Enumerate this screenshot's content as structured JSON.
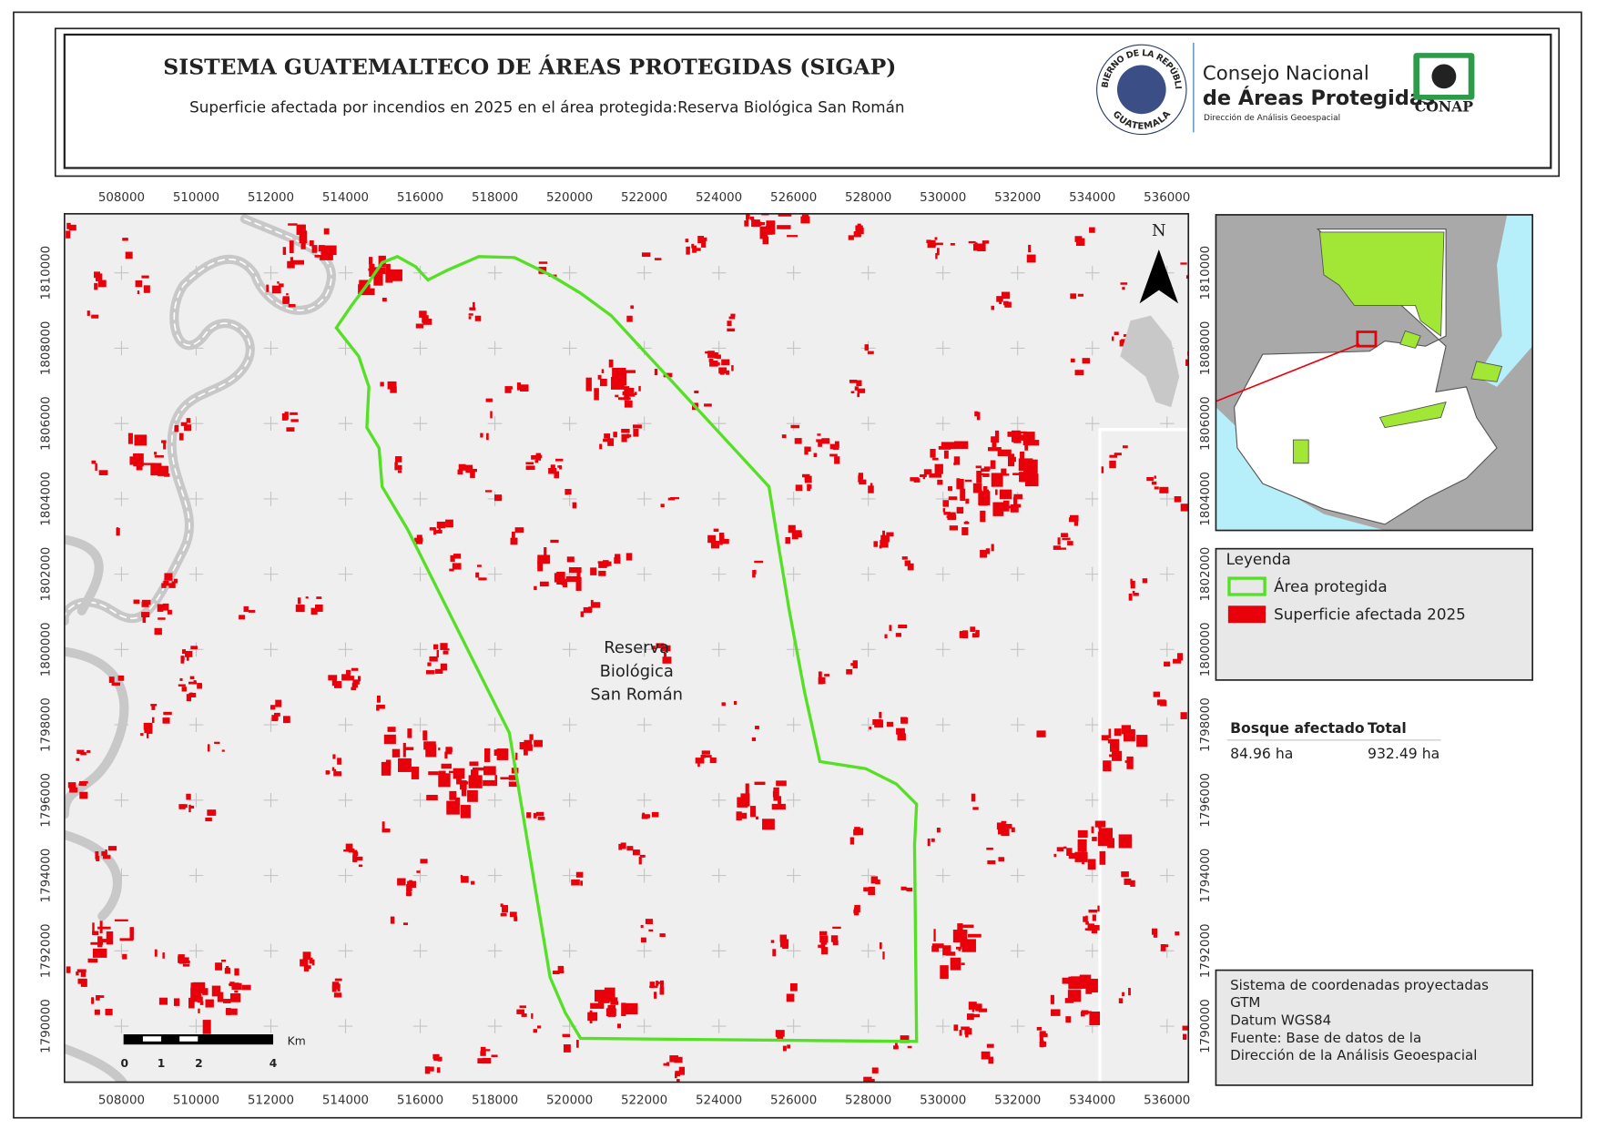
{
  "header": {
    "title": "SISTEMA GUATEMALTECO DE ÁREAS PROTEGIDAS  (SIGAP)",
    "subtitle": "Superficie afectada por incendios en 2025 en el área protegida:Reserva Biológica San Román"
  },
  "logos": {
    "seal_top": "GOBIERNO DE LA REPÚBLICA",
    "seal_bottom": "GUATEMALA",
    "org_line1": "Consejo Nacional",
    "org_line2": "de Áreas Protegidas",
    "org_line3": "Dirección de Análisis Geoespacial",
    "conap": "CONAP"
  },
  "map": {
    "x_ticks": [
      508000,
      510000,
      512000,
      514000,
      516000,
      518000,
      520000,
      522000,
      524000,
      526000,
      528000,
      530000,
      532000,
      534000,
      536000
    ],
    "y_ticks": [
      1810000,
      1808000,
      1806000,
      1804000,
      1802000,
      1800000,
      1798000,
      1796000,
      1794000,
      1792000,
      1790000
    ],
    "north": "N",
    "area_label": [
      "Reserva",
      "Biológica",
      "San Román"
    ],
    "scale_unit": "Km",
    "scale_labels": [
      0,
      1,
      2,
      4
    ]
  },
  "legend": {
    "title": "Leyenda",
    "items": [
      {
        "label": "Área protegida",
        "color": "#55e026"
      },
      {
        "label": "Superficie afectada 2025",
        "color": "#e8000b"
      }
    ]
  },
  "table": {
    "headers": [
      "Bosque afectado",
      "Total"
    ],
    "rows": [
      [
        "84.96 ha",
        "932.49 ha"
      ]
    ]
  },
  "notes": [
    "Sistema de coordenadas proyectadas",
    "GTM",
    "Datum WGS84",
    "Fuente: Base de datos de la",
    "Dirección de la Análisis Geoespacial"
  ]
}
